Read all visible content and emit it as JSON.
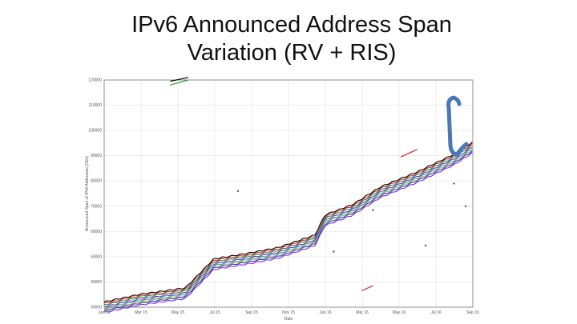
{
  "slide": {
    "title_line1": "IPv6 Announced Address Span",
    "title_line2": "Variation (RV + RIS)"
  },
  "chart_data": {
    "type": "line",
    "title": "IPv6 Announced Address Span Variation (RV + RIS)",
    "xlabel": "Date",
    "ylabel": "Announced Span of IPv6 Addresses (/32s)",
    "x_tick_labels": [
      "Jan 15",
      "Mar 15",
      "May 15",
      "Jul 15",
      "Sep 15",
      "Nov 15",
      "Jan 16",
      "Mar 16",
      "May 16",
      "Jul 16",
      "Sep 16"
    ],
    "y_tick_labels": [
      "120000",
      "110000",
      "100000",
      "90000",
      "80000",
      "70000",
      "60000",
      "50000",
      "40000",
      "30000"
    ],
    "ylim": [
      30000,
      120000
    ],
    "grid": true,
    "legend": "none",
    "annotation": "blue bracket marking spread between peers at the right edge",
    "band_points": [
      [
        "2015-01-01",
        30500
      ],
      [
        "2015-03-01",
        33500
      ],
      [
        "2015-05-15",
        36000
      ],
      [
        "2015-07-01",
        47500
      ],
      [
        "2015-09-01",
        50000
      ],
      [
        "2015-10-15",
        52000
      ],
      [
        "2015-12-15",
        57000
      ],
      [
        "2016-01-01",
        65000
      ],
      [
        "2016-02-15",
        69000
      ],
      [
        "2016-04-01",
        76000
      ],
      [
        "2016-06-01",
        82000
      ],
      [
        "2016-08-01",
        89000
      ],
      [
        "2016-09-15",
        96000
      ]
    ],
    "series": [
      {
        "color": "#000000",
        "offset": 1600
      },
      {
        "color": "#d62728",
        "offset": 1000
      },
      {
        "color": "#1f8a3a",
        "offset": 400
      },
      {
        "color": "#7b2fbf",
        "offset": -300
      },
      {
        "color": "#2aa9a9",
        "offset": -900
      },
      {
        "color": "#c7b44a",
        "offset": -1400
      },
      {
        "color": "#1f3fbf",
        "offset": -1900
      },
      {
        "color": "#8a2be2",
        "offset": -2600
      }
    ],
    "outliers": [
      {
        "color": "#2e9d3a",
        "points": [
          [
            "2015-04-20",
            118000
          ],
          [
            "2015-05-20",
            120000
          ]
        ]
      },
      {
        "color": "#000000",
        "points": [
          [
            "2015-04-20",
            119500
          ],
          [
            "2015-05-20",
            121000
          ]
        ]
      },
      {
        "color": "#d62728",
        "points": [
          [
            "2016-05-05",
            89500
          ],
          [
            "2016-06-01",
            92500
          ]
        ]
      },
      {
        "color": "#d62728",
        "points": [
          [
            "2016-03-01",
            36500
          ],
          [
            "2016-03-20",
            38500
          ]
        ]
      }
    ]
  },
  "colors": {
    "bracket": "#4a78b5",
    "grid": "#e3e3e3",
    "axis": "#777777"
  }
}
